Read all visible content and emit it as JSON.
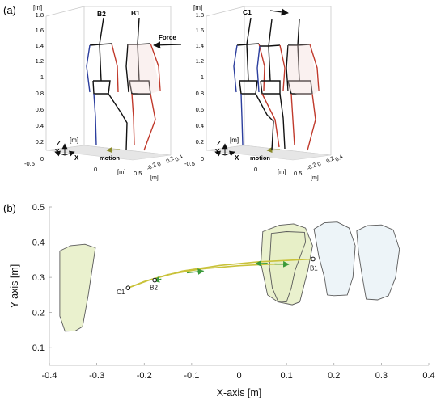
{
  "panel_a": {
    "label": "(a)",
    "views": [
      {
        "unit_label": "[m]",
        "z_ticks": [
          "0",
          "0.2",
          "0.4",
          "0.6",
          "0.8",
          "1",
          "1.2",
          "1.4",
          "1.6",
          "1.8"
        ],
        "x_ticks": [
          "-0.5",
          "0",
          "0.5"
        ],
        "y_ticks": [
          "-0.2",
          "0",
          "0.2",
          "0.4"
        ],
        "x_unit": "[m]",
        "y_unit": "[m]",
        "base_unit": "[m]",
        "axis_letters": {
          "z": "Z",
          "y": "Y",
          "x": "X"
        },
        "motion_label": "motion",
        "annotations": [
          {
            "id": "B2",
            "text": "B2"
          },
          {
            "id": "B1",
            "text": "B1"
          },
          {
            "id": "force",
            "text": "Force"
          }
        ]
      },
      {
        "unit_label": "[m]",
        "z_ticks": [
          "0",
          "0.2",
          "0.4",
          "0.6",
          "0.8",
          "1",
          "1.2",
          "1.4",
          "1.6",
          "1.8"
        ],
        "x_ticks": [
          "-0.5",
          "0",
          "0.5"
        ],
        "y_ticks": [
          "-0.2",
          "0",
          "0.2",
          "0.4"
        ],
        "x_unit": "[m]",
        "y_unit": "[m]",
        "base_unit": "[m]",
        "axis_letters": {
          "z": "Z",
          "y": "Y",
          "x": "X"
        },
        "motion_label": "motion",
        "annotations": [
          {
            "id": "C1",
            "text": "C1"
          }
        ]
      }
    ]
  },
  "panel_b": {
    "label": "(b)"
  },
  "colors": {
    "right_leg": "#c0392b",
    "left_leg": "#2c3e9e",
    "trunk": "#111111",
    "force_arrow": "#111111",
    "com_path": "#c9c23a",
    "velocity_arrow": "#3a9a3a",
    "floor": "#e6e6e6",
    "green_fill": "#e6efc6",
    "blue_fill": "#e8f1f6"
  },
  "chart_data": {
    "type": "line",
    "xlabel": "X-axis [m]",
    "ylabel": "Y-axis [m]",
    "xlim": [
      -0.4,
      0.4
    ],
    "ylim": [
      0.05,
      0.5
    ],
    "xticks": [
      -0.4,
      -0.3,
      -0.2,
      -0.1,
      0,
      0.1,
      0.2,
      0.3,
      0.4
    ],
    "yticks": [
      0.1,
      0.2,
      0.3,
      0.4,
      0.5
    ],
    "grid": false,
    "polygons": [
      {
        "name": "left-foot",
        "fill": "green",
        "points": [
          [
            -0.378,
            0.375
          ],
          [
            -0.355,
            0.39
          ],
          [
            -0.325,
            0.394
          ],
          [
            -0.303,
            0.384
          ],
          [
            -0.318,
            0.25
          ],
          [
            -0.33,
            0.16
          ],
          [
            -0.345,
            0.148
          ],
          [
            -0.367,
            0.147
          ],
          [
            -0.378,
            0.19
          ]
        ]
      },
      {
        "name": "foot-green-back",
        "fill": "green",
        "points": [
          [
            0.05,
            0.43
          ],
          [
            0.085,
            0.448
          ],
          [
            0.115,
            0.452
          ],
          [
            0.14,
            0.44
          ],
          [
            0.155,
            0.39
          ],
          [
            0.145,
            0.32
          ],
          [
            0.128,
            0.23
          ],
          [
            0.112,
            0.222
          ],
          [
            0.082,
            0.23
          ],
          [
            0.06,
            0.25
          ],
          [
            0.046,
            0.34
          ]
        ]
      },
      {
        "name": "foot-green-front",
        "fill": "green",
        "points": [
          [
            0.068,
            0.425
          ],
          [
            0.1,
            0.43
          ],
          [
            0.138,
            0.428
          ],
          [
            0.14,
            0.4
          ],
          [
            0.118,
            0.32
          ],
          [
            0.11,
            0.27
          ],
          [
            0.1,
            0.23
          ],
          [
            0.082,
            0.232
          ],
          [
            0.07,
            0.27
          ],
          [
            0.064,
            0.33
          ]
        ]
      },
      {
        "name": "foot-blue-middle",
        "fill": "blue",
        "points": [
          [
            0.158,
            0.437
          ],
          [
            0.18,
            0.455
          ],
          [
            0.207,
            0.457
          ],
          [
            0.232,
            0.44
          ],
          [
            0.245,
            0.39
          ],
          [
            0.24,
            0.3
          ],
          [
            0.228,
            0.25
          ],
          [
            0.2,
            0.248
          ],
          [
            0.186,
            0.25
          ],
          [
            0.18,
            0.3
          ],
          [
            0.168,
            0.36
          ]
        ]
      },
      {
        "name": "foot-blue-right",
        "fill": "blue",
        "points": [
          [
            0.248,
            0.432
          ],
          [
            0.27,
            0.447
          ],
          [
            0.3,
            0.449
          ],
          [
            0.325,
            0.435
          ],
          [
            0.338,
            0.38
          ],
          [
            0.33,
            0.3
          ],
          [
            0.315,
            0.248
          ],
          [
            0.292,
            0.236
          ],
          [
            0.268,
            0.238
          ],
          [
            0.26,
            0.3
          ],
          [
            0.252,
            0.37
          ]
        ]
      }
    ],
    "series": [
      {
        "points": [
          [
            -0.234,
            0.27
          ],
          [
            -0.19,
            0.292
          ],
          [
            -0.12,
            0.318
          ],
          [
            -0.04,
            0.334
          ],
          [
            0.04,
            0.344
          ],
          [
            0.1,
            0.348
          ],
          [
            0.156,
            0.352
          ]
        ]
      },
      {
        "points": [
          [
            -0.234,
            0.27
          ],
          [
            -0.2,
            0.288
          ],
          [
            -0.15,
            0.308
          ],
          [
            -0.08,
            0.324
          ],
          [
            0.0,
            0.333
          ],
          [
            0.06,
            0.337
          ],
          [
            0.1,
            0.338
          ]
        ]
      }
    ],
    "points": [
      {
        "label": "C1",
        "x": -0.234,
        "y": 0.27
      },
      {
        "label": "B2",
        "x": -0.178,
        "y": 0.292
      },
      {
        "label": "B1",
        "x": 0.156,
        "y": 0.352
      }
    ],
    "arrows": [
      {
        "from": [
          -0.164,
          0.295
        ],
        "to": [
          -0.18,
          0.29
        ]
      },
      {
        "from": [
          -0.11,
          0.313
        ],
        "to": [
          -0.075,
          0.318
        ]
      },
      {
        "from": [
          0.06,
          0.34
        ],
        "to": [
          0.035,
          0.339
        ]
      },
      {
        "from": [
          0.075,
          0.338
        ],
        "to": [
          0.105,
          0.337
        ]
      }
    ]
  }
}
